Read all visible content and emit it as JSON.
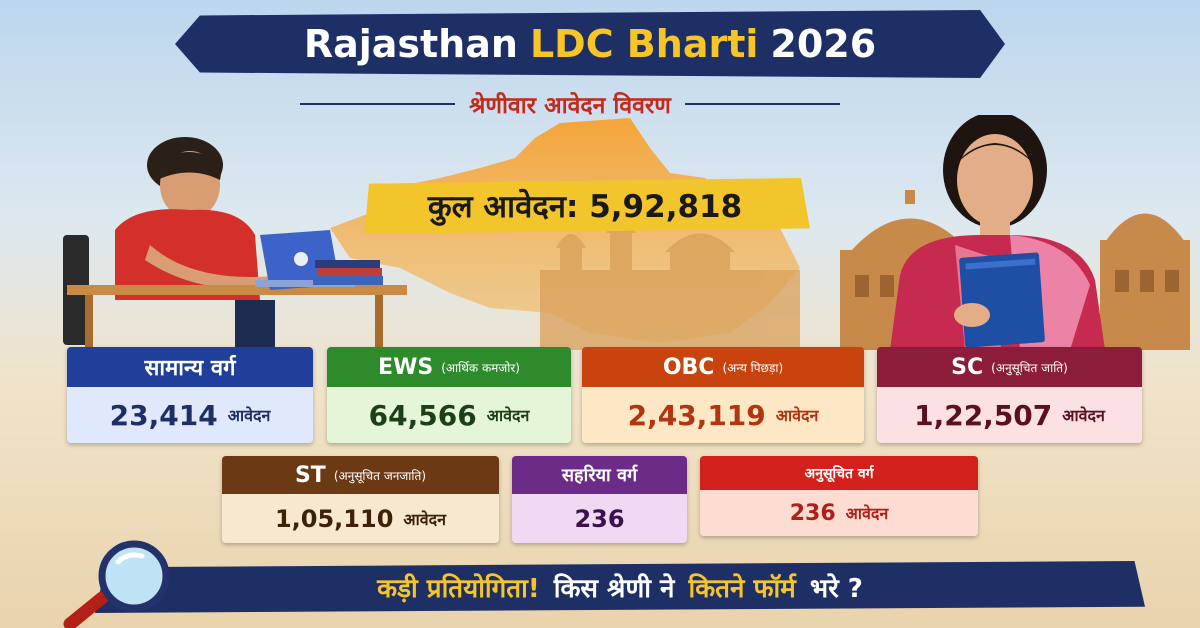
{
  "title": {
    "part1": "Rajasthan",
    "part2": "LDC Bharti",
    "part3": "2026"
  },
  "subtitle": "श्रेणीवार आवेदन विवरण",
  "total": "कुल आवेदन: 5,92,818",
  "colors": {
    "navy": "#1e2f66",
    "gold": "#f3c52c",
    "red": "#c42a1b"
  },
  "categories": [
    {
      "name": "सामान्य वर्ग",
      "sub": "",
      "value": "23,414",
      "unit": "आवेदन",
      "color": "#1f3f9a",
      "bg": "#dfe9fb",
      "text": "#1e2f66"
    },
    {
      "name": "EWS",
      "sub": "(आर्थिक कमजोर)",
      "value": "64,566",
      "unit": "आवेदन",
      "color": "#2e8b2c",
      "bg": "#e5f5d8",
      "text": "#1c3f16"
    },
    {
      "name": "OBC",
      "sub": "(अन्य पिछड़ा)",
      "value": "2,43,119",
      "unit": "आवेदन",
      "color": "#c9430f",
      "bg": "#fde7c4",
      "text": "#b23410"
    },
    {
      "name": "SC",
      "sub": "(अनुसूचित जाति)",
      "value": "1,22,507",
      "unit": "आवेदन",
      "color": "#8b1d3b",
      "bg": "#fbe0e4",
      "text": "#5a1020"
    },
    {
      "name": "ST",
      "sub": "(अनुसूचित जनजाति)",
      "value": "1,05,110",
      "unit": "आवेदन",
      "color": "#6b3a14",
      "bg": "#f7e8cf",
      "text": "#3d2208"
    },
    {
      "name": "सहरिया वर्ग",
      "sub": "",
      "value": "236",
      "unit": "",
      "color": "#6b2b86",
      "bg": "#efd9f3",
      "text": "#3b1050"
    },
    {
      "name": "अनुसूचित वर्ग",
      "sub": "",
      "value": "236",
      "unit": "आवेदन",
      "color": "#d4201c",
      "bg": "#fddcd2",
      "text": "#b21f18"
    }
  ],
  "bottom": {
    "part1": "कड़ी प्रतियोगिता!",
    "part2": "किस श्रेणी ने",
    "part3": "कितने फॉर्म",
    "part4": "भरे ?"
  },
  "icons": {
    "map": "rajasthan-map-icon",
    "magnifier": "magnifier-icon"
  }
}
